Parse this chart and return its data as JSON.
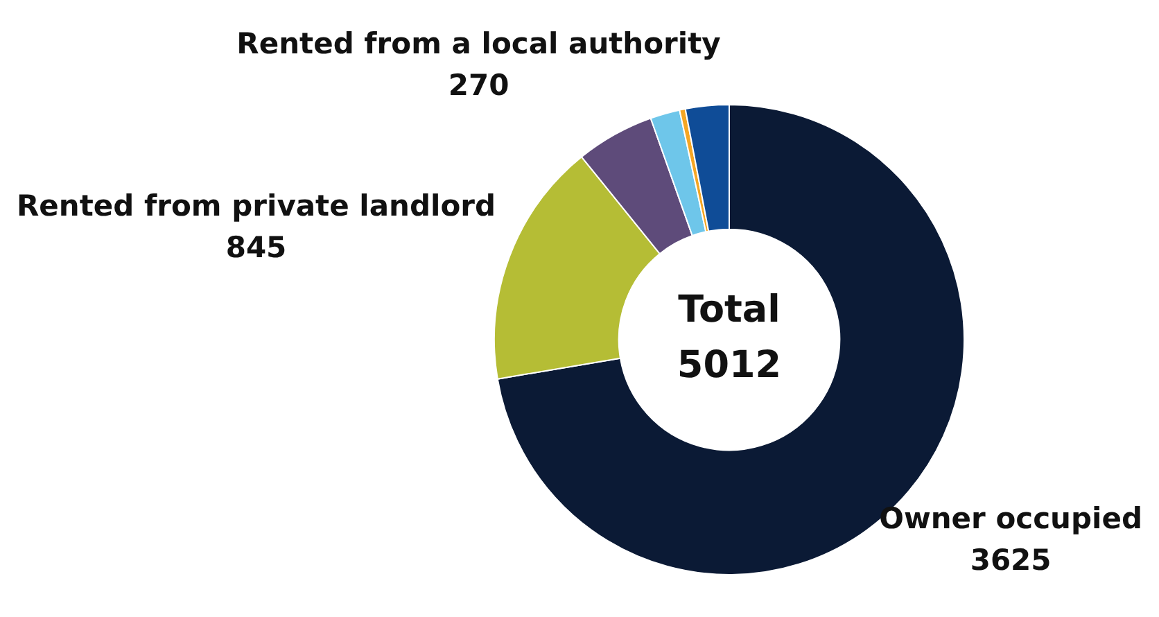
{
  "chart_data": {
    "type": "donut",
    "categories": [
      "Owner occupied",
      "Rented from private landlord",
      "Rented from a local authority",
      null,
      null,
      null
    ],
    "values": [
      3625,
      845,
      270,
      102,
      20,
      150
    ],
    "value_labels": [
      "3625",
      "845",
      "270",
      null,
      null,
      null
    ],
    "colors": [
      "#0b1a35",
      "#b5bd35",
      "#5e4b7a",
      "#6ec6ea",
      "#f5a623",
      "#0f4c97"
    ],
    "annotations": [
      "Total 5012"
    ],
    "legend": false
  }
}
